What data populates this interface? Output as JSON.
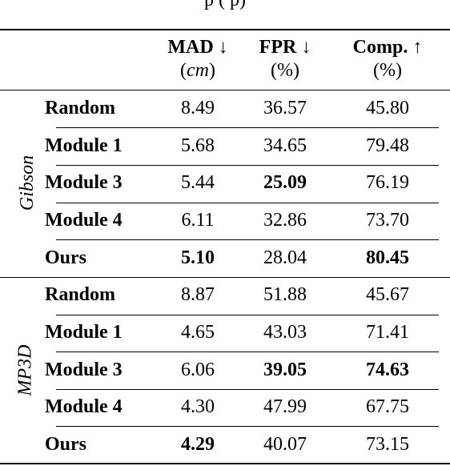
{
  "caption_fragment": "p       (       p)",
  "header": {
    "mad": {
      "name": "MAD ↓",
      "unit_open": "(",
      "unit": "cm",
      "unit_close": ")"
    },
    "fpr": {
      "name": "FPR ↓",
      "unit": "(%)"
    },
    "comp": {
      "name": "Comp. ↑",
      "unit": "(%)"
    }
  },
  "groups": [
    {
      "label": "Gibson",
      "rows": [
        {
          "method": "Random",
          "mad": "8.49",
          "fpr": "36.57",
          "comp": "45.80"
        },
        {
          "method": "Module 1",
          "mad": "5.68",
          "fpr": "34.65",
          "comp": "79.48"
        },
        {
          "method": "Module 3",
          "mad": "5.44",
          "fpr": "25.09",
          "comp": "76.19"
        },
        {
          "method": "Module 4",
          "mad": "6.11",
          "fpr": "32.86",
          "comp": "73.70"
        },
        {
          "method": "Ours",
          "mad": "5.10",
          "fpr": "28.04",
          "comp": "80.45"
        }
      ]
    },
    {
      "label": "MP3D",
      "rows": [
        {
          "method": "Random",
          "mad": "8.87",
          "fpr": "51.88",
          "comp": "45.67"
        },
        {
          "method": "Module 1",
          "mad": "4.65",
          "fpr": "43.03",
          "comp": "71.41"
        },
        {
          "method": "Module 3",
          "mad": "6.06",
          "fpr": "39.05",
          "comp": "74.63"
        },
        {
          "method": "Module 4",
          "mad": "4.30",
          "fpr": "47.99",
          "comp": "67.75"
        },
        {
          "method": "Ours",
          "mad": "4.29",
          "fpr": "40.07",
          "comp": "73.15"
        }
      ]
    }
  ]
}
